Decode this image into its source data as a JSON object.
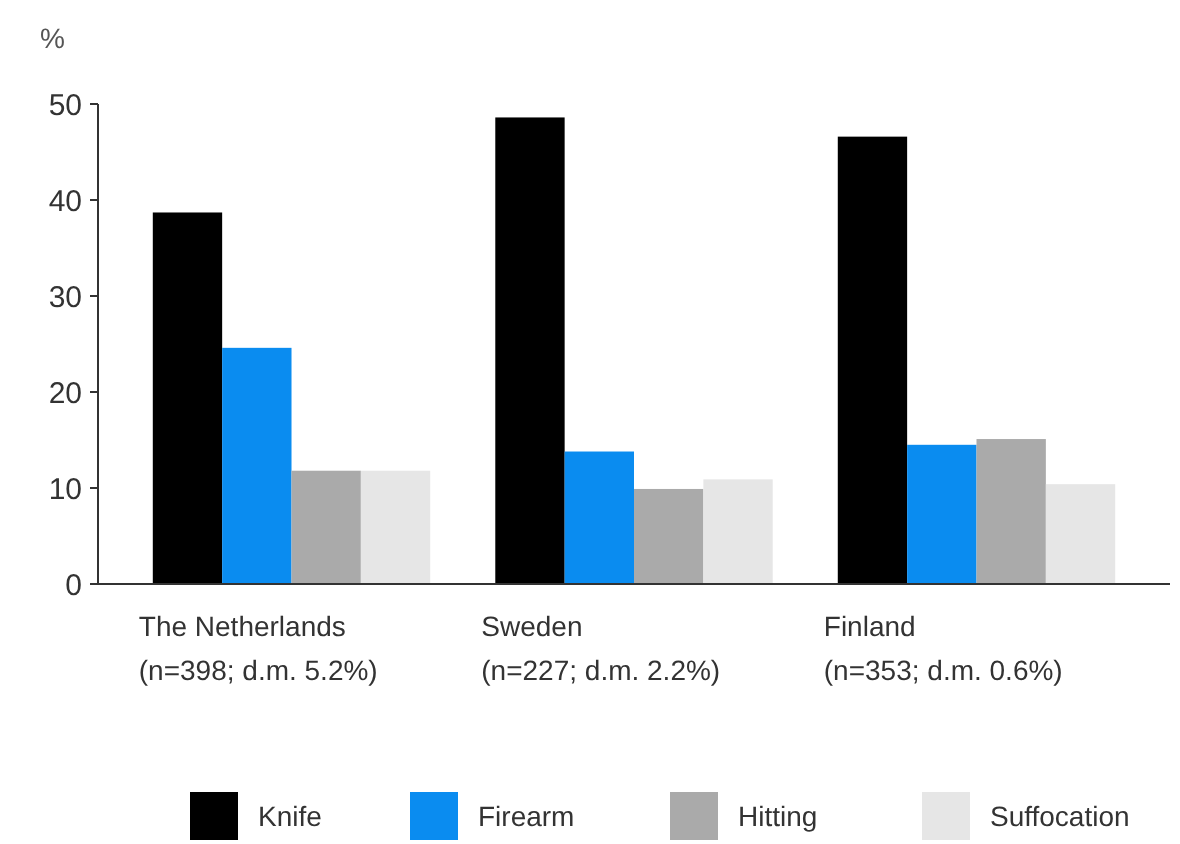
{
  "chart_data": {
    "type": "bar",
    "ylabel": "%",
    "categories": [
      "The Netherlands\n(n=398; d.m. 5.2%)",
      "Sweden\n(n=227; d.m. 2.2%)",
      "Finland\n(n=353; d.m. 0.6%)"
    ],
    "series": [
      {
        "name": "Knife",
        "color": "#000000",
        "values": [
          38.7,
          48.6,
          46.6
        ]
      },
      {
        "name": "Firearm",
        "color": "#0a8cf0",
        "values": [
          24.6,
          13.8,
          14.5
        ]
      },
      {
        "name": "Hitting",
        "color": "#aaaaaa",
        "values": [
          11.8,
          9.9,
          15.1
        ]
      },
      {
        "name": "Suffocation",
        "color": "#e6e6e6",
        "values": [
          11.8,
          10.9,
          10.4
        ]
      }
    ],
    "ylim": [
      0,
      50
    ],
    "yticks": [
      0,
      10,
      20,
      30,
      40,
      50
    ],
    "grid": false,
    "legend": "bottom"
  }
}
